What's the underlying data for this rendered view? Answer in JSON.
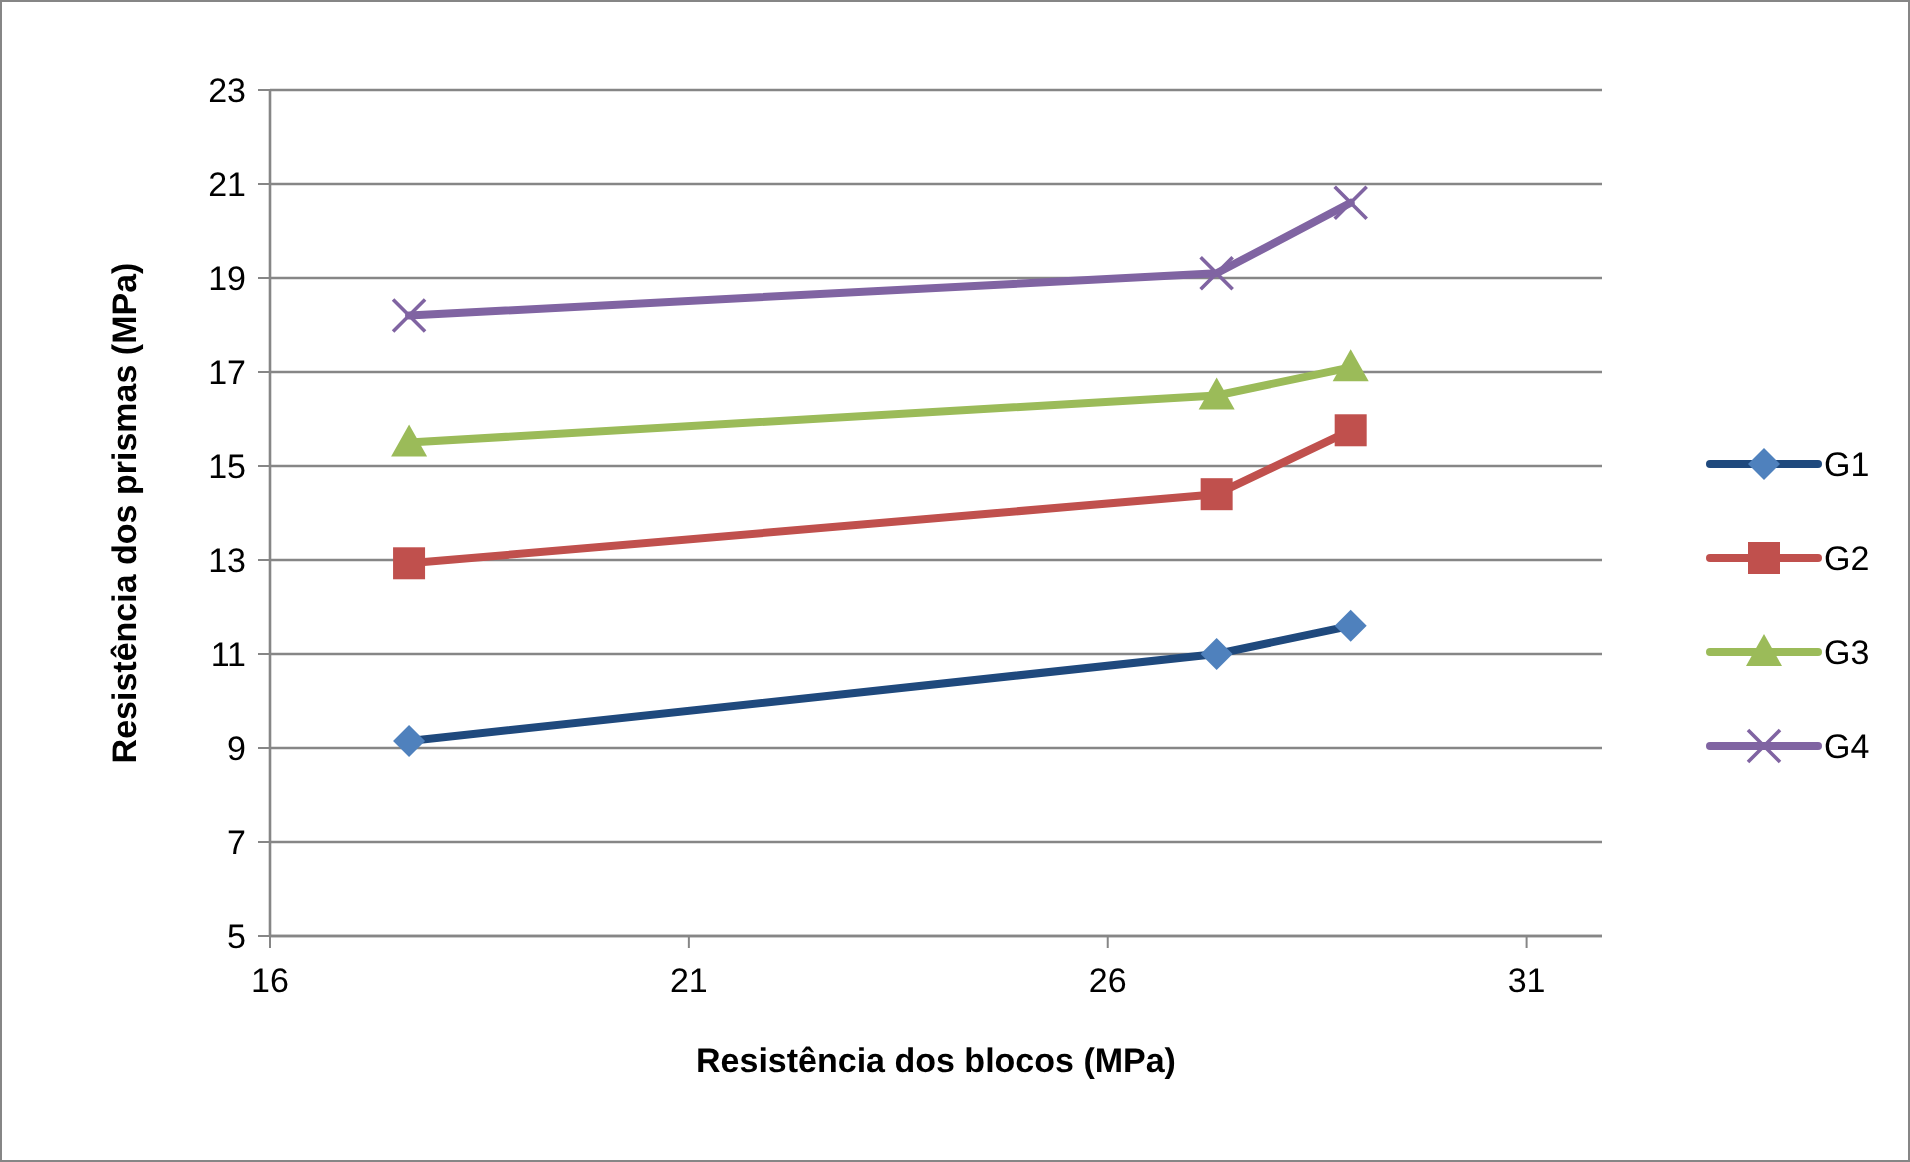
{
  "chart_data": {
    "type": "line",
    "xlabel": "Resistência dos blocos (MPa)",
    "ylabel": "Resistência dos prismas (MPa)",
    "x": [
      17.66,
      27.3,
      28.9
    ],
    "series": [
      {
        "name": "G1",
        "color": "#1f497d",
        "marker": "diamond",
        "colors": [
          "#4f81bd",
          "#4f81bd",
          "#4f81bd"
        ],
        "values": [
          9.15,
          11.0,
          11.6
        ]
      },
      {
        "name": "G2",
        "color": "#c0504d",
        "marker": "square",
        "values": [
          12.93,
          14.4,
          15.76
        ]
      },
      {
        "name": "G3",
        "color": "#9bbb59",
        "marker": "triangle",
        "values": [
          15.5,
          16.5,
          17.1
        ]
      },
      {
        "name": "G4",
        "color": "#8064a2",
        "marker": "cross",
        "values": [
          18.2,
          19.1,
          20.6
        ]
      }
    ],
    "xlim": [
      16,
      31.9
    ],
    "xticks": [
      16,
      21,
      26,
      31
    ],
    "ylim": [
      5,
      23
    ],
    "yticks": [
      5,
      7,
      9,
      11,
      13,
      15,
      17,
      19,
      21,
      23
    ],
    "grid": "y",
    "legend": "right"
  }
}
